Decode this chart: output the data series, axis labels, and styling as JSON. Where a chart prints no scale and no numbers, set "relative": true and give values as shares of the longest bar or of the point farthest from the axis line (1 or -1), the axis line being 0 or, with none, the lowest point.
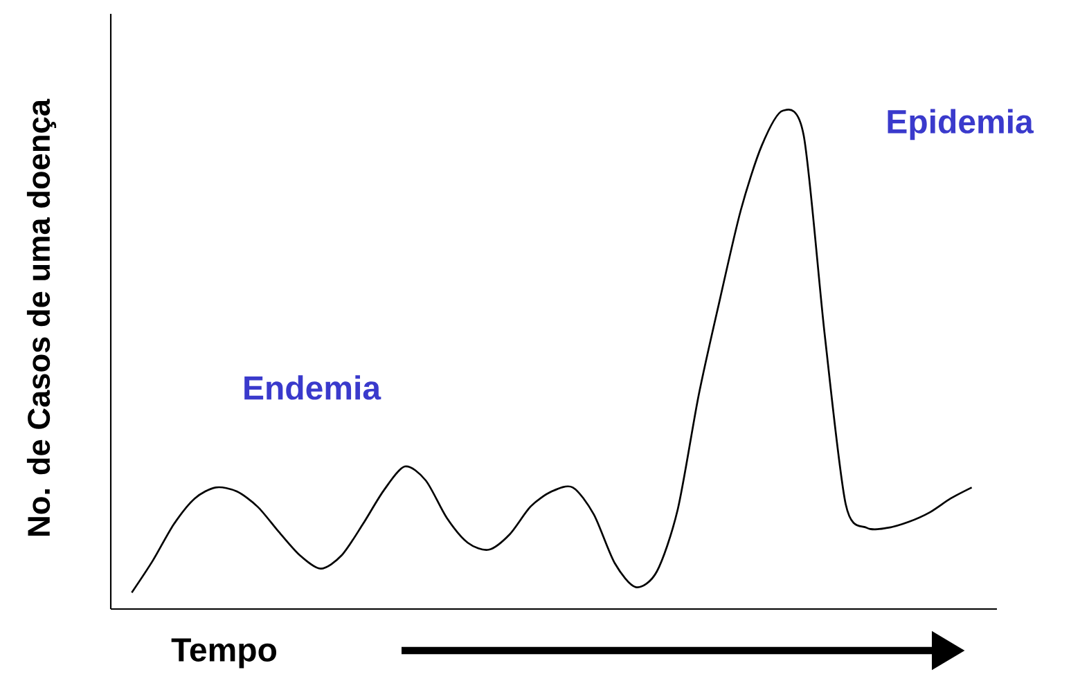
{
  "chart_data": {
    "type": "line",
    "relative": true,
    "ylabel": "No. de Casos de uma doença",
    "xlabel": "Tempo",
    "annotations": [
      "Endemia",
      "Epidemia"
    ],
    "categories": [
      null,
      null,
      null,
      null,
      null,
      null,
      null,
      null,
      null,
      null,
      null,
      null,
      null,
      null,
      null,
      null,
      null,
      null,
      null,
      null,
      null,
      null,
      null,
      null,
      null,
      null,
      null,
      null,
      null,
      null,
      null,
      null,
      null,
      null,
      null,
      null,
      null,
      null,
      null,
      null,
      null
    ],
    "series": [
      {
        "color": "#000000",
        "values": [
          0.033,
          0.097,
          0.17,
          0.222,
          0.244,
          0.236,
          0.205,
          0.155,
          0.108,
          0.081,
          0.108,
          0.17,
          0.238,
          0.286,
          0.258,
          0.183,
          0.133,
          0.119,
          0.15,
          0.206,
          0.236,
          0.244,
          0.19,
          0.092,
          0.044,
          0.075,
          0.2,
          0.43,
          0.62,
          0.8,
          0.93,
          1.0,
          0.95,
          0.55,
          0.21,
          0.163,
          0.163,
          0.175,
          0.194,
          0.222,
          0.244
        ]
      }
    ]
  }
}
